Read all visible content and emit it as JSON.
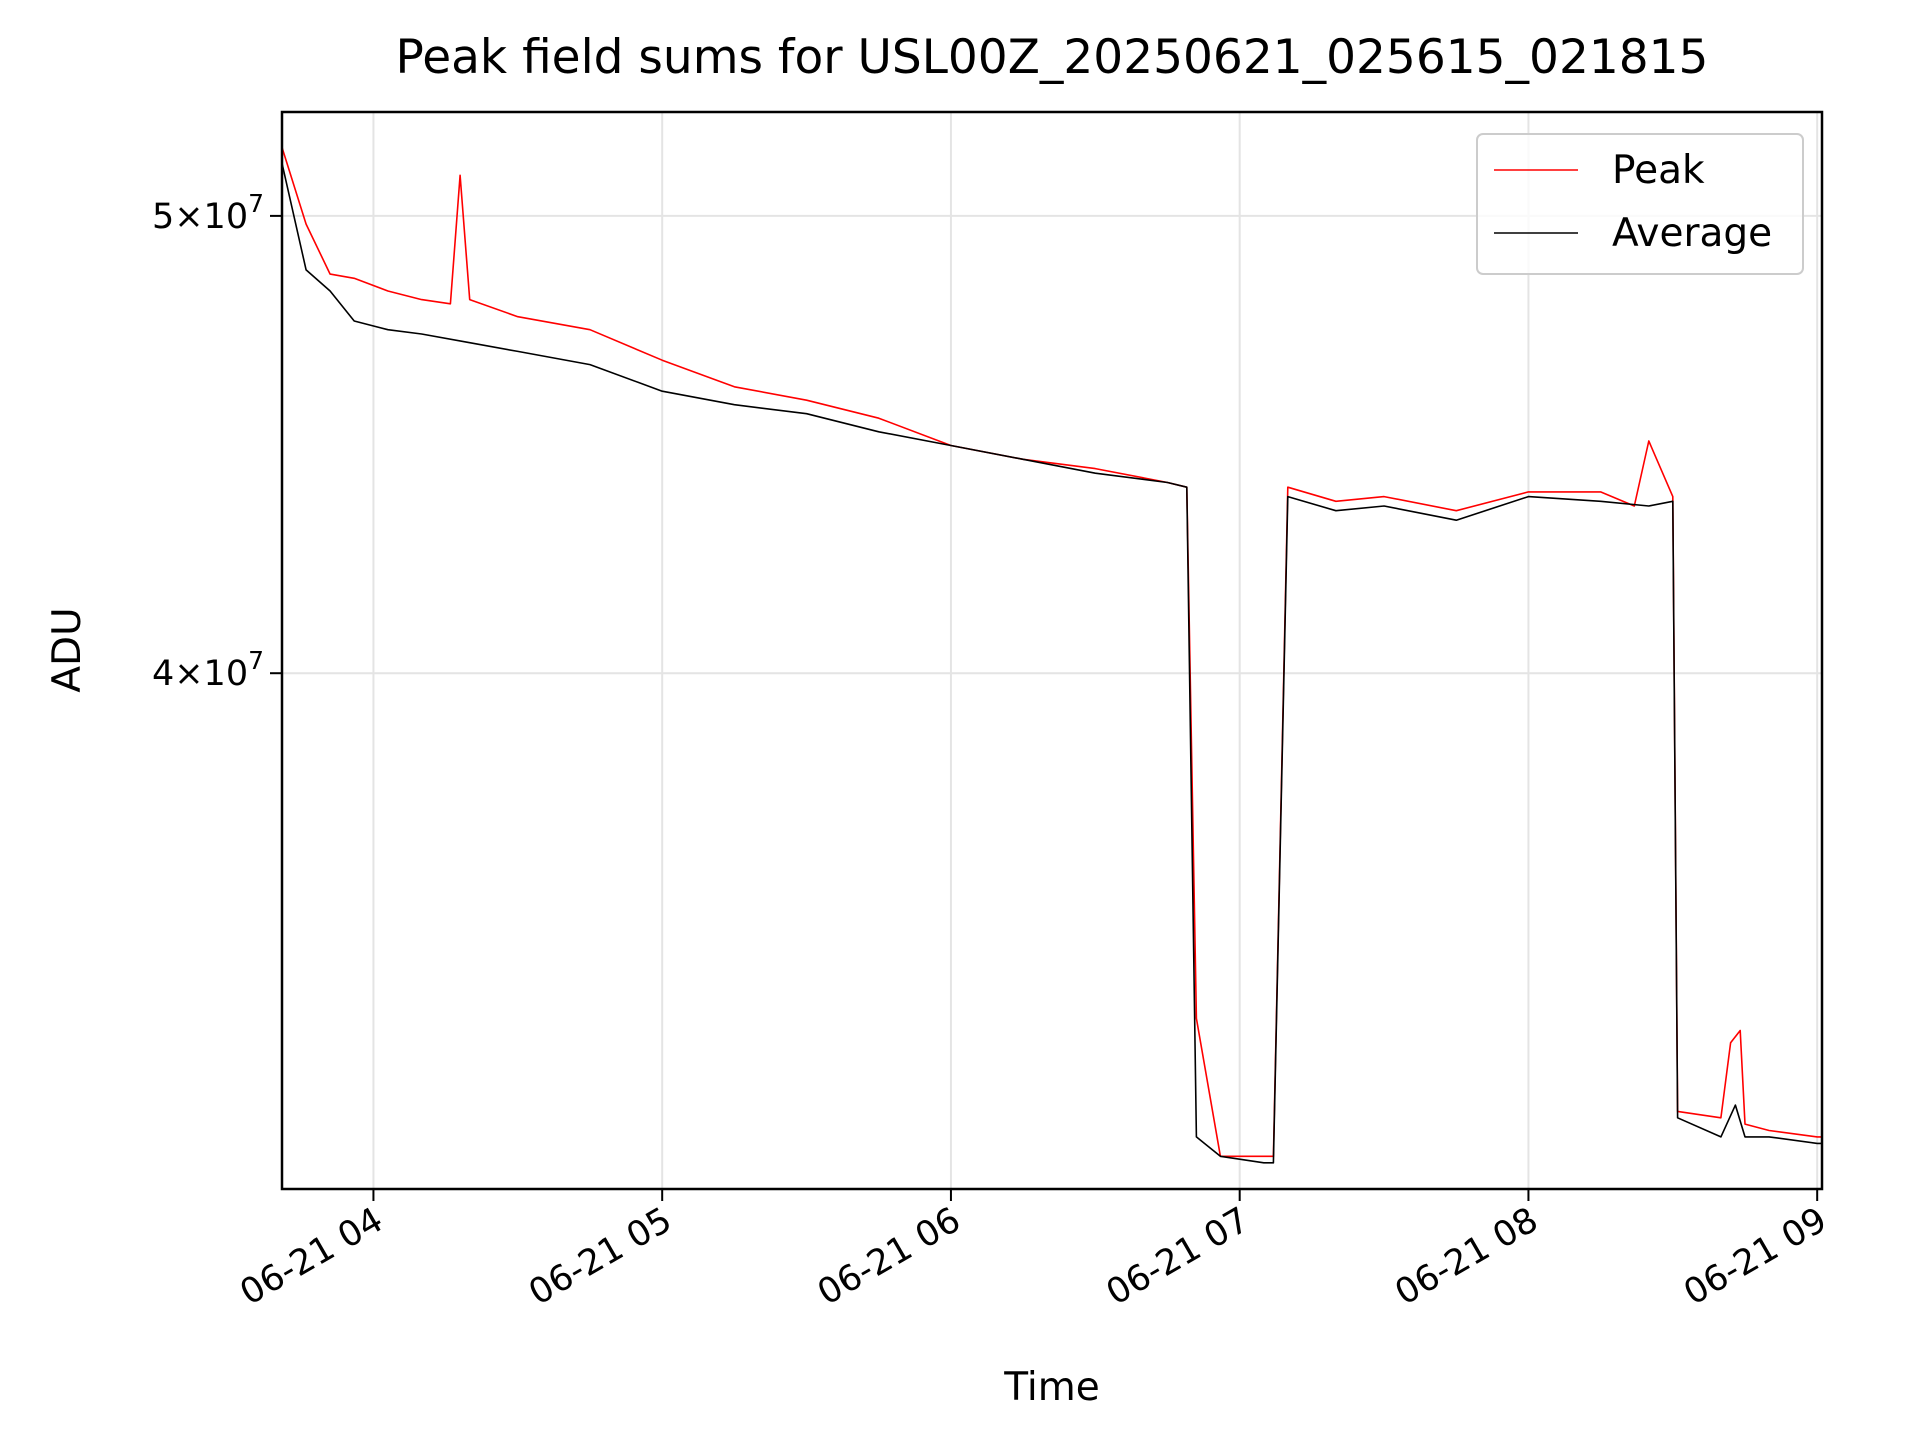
{
  "chart_data": {
    "type": "line",
    "title": "Peak field sums for USL00Z_20250621_025615_021815",
    "xlabel": "Time",
    "ylabel": "ADU",
    "y_scale": "log",
    "xlim": [
      "2025-06-21 03:41",
      "2025-06-21 09:01"
    ],
    "ylim": [
      31100000,
      52600000
    ],
    "grid": true,
    "legend_position": "top-right",
    "x_ticks": [
      {
        "value": "2025-06-21 04:00",
        "label": "06-21 04"
      },
      {
        "value": "2025-06-21 05:00",
        "label": "06-21 05"
      },
      {
        "value": "2025-06-21 06:00",
        "label": "06-21 06"
      },
      {
        "value": "2025-06-21 07:00",
        "label": "06-21 07"
      },
      {
        "value": "2025-06-21 08:00",
        "label": "06-21 08"
      },
      {
        "value": "2025-06-21 09:00",
        "label": "06-21 09"
      }
    ],
    "y_ticks": [
      {
        "value": 40000000,
        "mantissa": "4",
        "exponent": "7"
      },
      {
        "value": 50000000,
        "mantissa": "5",
        "exponent": "7"
      }
    ],
    "series": [
      {
        "name": "Peak",
        "color": "#ff0000",
        "x": [
          "2025-06-21 03:41",
          "2025-06-21 03:46",
          "2025-06-21 03:51",
          "2025-06-21 03:56",
          "2025-06-21 04:03",
          "2025-06-21 04:10",
          "2025-06-21 04:16",
          "2025-06-21 04:18",
          "2025-06-21 04:20",
          "2025-06-21 04:30",
          "2025-06-21 04:45",
          "2025-06-21 05:00",
          "2025-06-21 05:15",
          "2025-06-21 05:30",
          "2025-06-21 05:45",
          "2025-06-21 06:00",
          "2025-06-21 06:15",
          "2025-06-21 06:30",
          "2025-06-21 06:45",
          "2025-06-21 06:49",
          "2025-06-21 06:51",
          "2025-06-21 06:56",
          "2025-06-21 07:05",
          "2025-06-21 07:07",
          "2025-06-21 07:10",
          "2025-06-21 07:20",
          "2025-06-21 07:30",
          "2025-06-21 07:45",
          "2025-06-21 08:00",
          "2025-06-21 08:15",
          "2025-06-21 08:22",
          "2025-06-21 08:25",
          "2025-06-21 08:30",
          "2025-06-21 08:31",
          "2025-06-21 08:40",
          "2025-06-21 08:42",
          "2025-06-21 08:44",
          "2025-06-21 08:45",
          "2025-06-21 08:50",
          "2025-06-21 09:00",
          "2025-06-21 09:01"
        ],
        "values": [
          51700000,
          49800000,
          48600000,
          48500000,
          48200000,
          48000000,
          47900000,
          51000000,
          48000000,
          47600000,
          47300000,
          46600000,
          46000000,
          45700000,
          45300000,
          44700000,
          44400000,
          44200000,
          43900000,
          43800000,
          33800000,
          31600000,
          31600000,
          31600000,
          43800000,
          43500000,
          43600000,
          43300000,
          43700000,
          43700000,
          43400000,
          44800000,
          43600000,
          32300000,
          32200000,
          33400000,
          33600000,
          32100000,
          32000000,
          31900000,
          31900000
        ]
      },
      {
        "name": "Average",
        "color": "#000000",
        "x": [
          "2025-06-21 03:41",
          "2025-06-21 03:46",
          "2025-06-21 03:51",
          "2025-06-21 03:56",
          "2025-06-21 04:03",
          "2025-06-21 04:10",
          "2025-06-21 04:20",
          "2025-06-21 04:30",
          "2025-06-21 04:45",
          "2025-06-21 05:00",
          "2025-06-21 05:15",
          "2025-06-21 05:30",
          "2025-06-21 05:45",
          "2025-06-21 06:00",
          "2025-06-21 06:15",
          "2025-06-21 06:30",
          "2025-06-21 06:45",
          "2025-06-21 06:49",
          "2025-06-21 06:51",
          "2025-06-21 06:56",
          "2025-06-21 07:05",
          "2025-06-21 07:07",
          "2025-06-21 07:10",
          "2025-06-21 07:20",
          "2025-06-21 07:30",
          "2025-06-21 07:45",
          "2025-06-21 08:00",
          "2025-06-21 08:15",
          "2025-06-21 08:25",
          "2025-06-21 08:30",
          "2025-06-21 08:31",
          "2025-06-21 08:40",
          "2025-06-21 08:43",
          "2025-06-21 08:45",
          "2025-06-21 08:50",
          "2025-06-21 09:00",
          "2025-06-21 09:01"
        ],
        "values": [
          51300000,
          48700000,
          48200000,
          47500000,
          47300000,
          47200000,
          47000000,
          46800000,
          46500000,
          45900000,
          45600000,
          45400000,
          45000000,
          44700000,
          44400000,
          44100000,
          43900000,
          43800000,
          31900000,
          31600000,
          31500000,
          31500000,
          43600000,
          43300000,
          43400000,
          43100000,
          43600000,
          43500000,
          43400000,
          43500000,
          32200000,
          31900000,
          32400000,
          31900000,
          31900000,
          31800000,
          31800000
        ]
      }
    ]
  }
}
